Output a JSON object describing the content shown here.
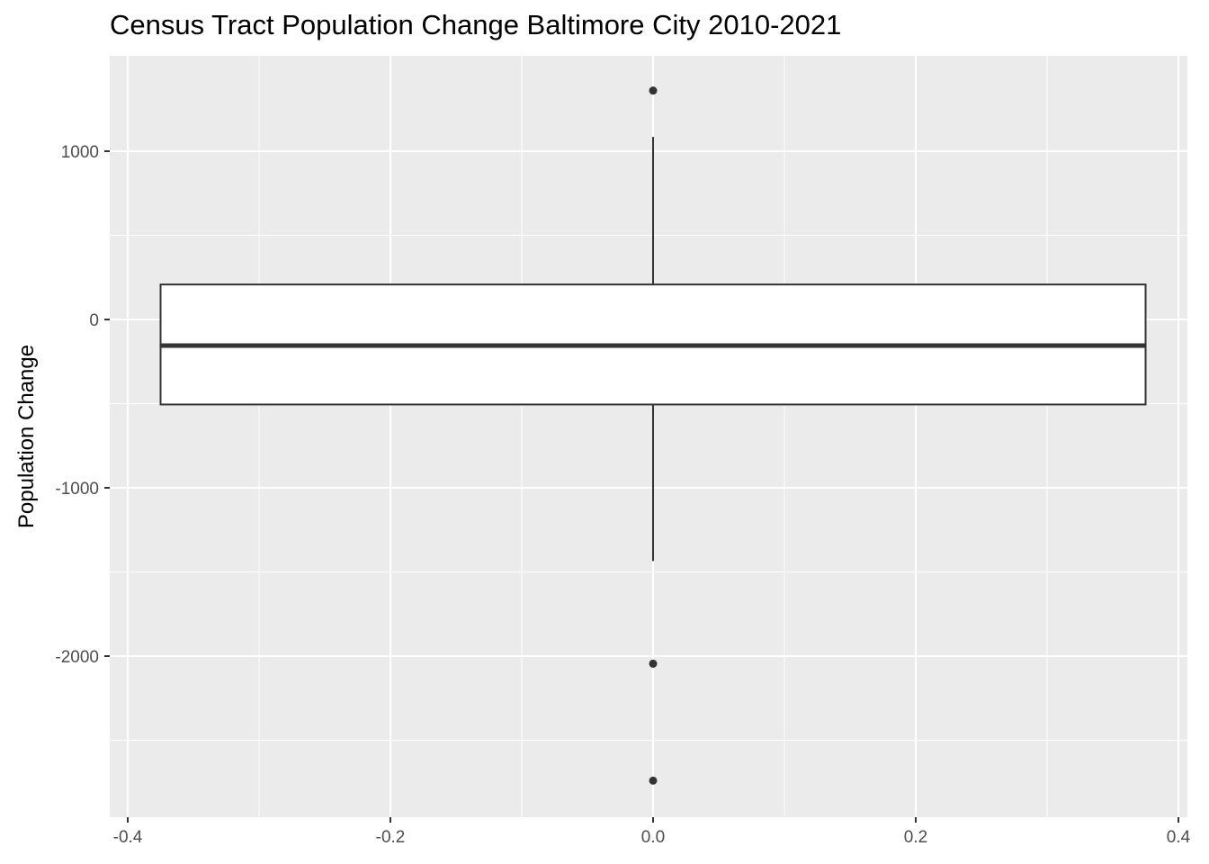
{
  "chart_data": {
    "type": "box",
    "title": "Census Tract Population Change Baltimore City 2010-2021",
    "xlabel": "",
    "ylabel": "Population Change",
    "xlim": [
      -0.4,
      0.4
    ],
    "ylim": [
      -2800,
      1400
    ],
    "x_ticks": [
      -0.4,
      -0.2,
      0.0,
      0.2,
      0.4
    ],
    "x_tick_labels": [
      "-0.4",
      "-0.2",
      "0.0",
      "0.2",
      "0.4"
    ],
    "y_ticks": [
      -2000,
      -1000,
      0,
      1000
    ],
    "y_tick_labels": [
      "-2000",
      "-1000",
      "0",
      "1000"
    ],
    "grid": true,
    "background": "#EBEBEB",
    "box": {
      "x_left": -0.375,
      "x_right": 0.375,
      "q1": -505,
      "median": -155,
      "q3": 208,
      "whisker_low": -1435,
      "whisker_high": 1085
    },
    "outliers": [
      {
        "x": 0.0,
        "y": 1360
      },
      {
        "x": 0.0,
        "y": -2045
      },
      {
        "x": 0.0,
        "y": -2740
      }
    ]
  }
}
